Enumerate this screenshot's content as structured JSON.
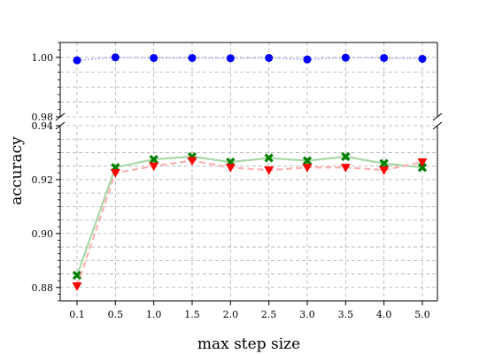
{
  "chart_data": {
    "type": "line",
    "xlabel": "max step size",
    "ylabel": "accuracy",
    "categories": [
      "0.1",
      "0.5",
      "1.0",
      "1.5",
      "2.0",
      "2.5",
      "3.0",
      "3.5",
      "4.0",
      "5.0"
    ],
    "broken_y_axis": true,
    "top_panel": {
      "ylim": [
        0.98,
        1.005
      ],
      "yticks": [
        "0.98",
        "1.00"
      ]
    },
    "bottom_panel": {
      "ylim": [
        0.875,
        0.94
      ],
      "yticks": [
        "0.88",
        "0.90",
        "0.92",
        "0.94"
      ]
    },
    "grid": true,
    "series": [
      {
        "marker": "circle",
        "color": "#0000ff",
        "line_color": "#9999ff",
        "line_style": "dotted",
        "panel": "top",
        "values": [
          0.999,
          1.0,
          0.9998,
          0.9998,
          0.9997,
          0.9998,
          0.9993,
          0.9999,
          0.9998,
          0.9995
        ]
      },
      {
        "marker": "x",
        "color": "#008000",
        "line_color": "#a8d8a8",
        "line_style": "solid",
        "panel": "bottom",
        "values": [
          0.8845,
          0.9245,
          0.9275,
          0.9285,
          0.9265,
          0.928,
          0.927,
          0.9285,
          0.926,
          0.9245
        ]
      },
      {
        "marker": "triangle-down",
        "color": "#ff0000",
        "line_color": "#ffb0b0",
        "line_style": "dashed",
        "panel": "bottom",
        "values": [
          0.8805,
          0.9225,
          0.925,
          0.927,
          0.9245,
          0.9235,
          0.9245,
          0.9245,
          0.9235,
          0.9265
        ]
      }
    ]
  }
}
